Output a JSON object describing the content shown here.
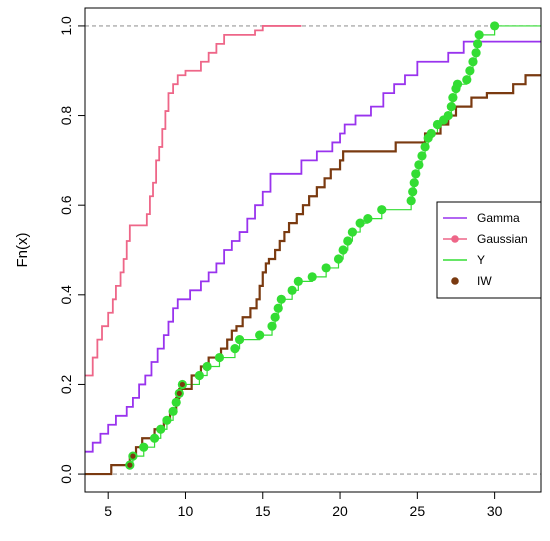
{
  "chart_data": {
    "type": "line",
    "title": "",
    "xlabel": "",
    "ylabel": "Fn(x)",
    "xlim": [
      3.5,
      33
    ],
    "ylim": [
      -0.04,
      1.04
    ],
    "x_ticks": [
      5,
      10,
      15,
      20,
      25,
      30
    ],
    "y_ticks": [
      0.0,
      0.2,
      0.4,
      0.6,
      0.8,
      1.0
    ],
    "x_tick_labels": [
      "5",
      "10",
      "15",
      "20",
      "25",
      "30"
    ],
    "y_tick_labels": [
      "0.0",
      "0.2",
      "0.4",
      "0.6",
      "0.8",
      "1.0"
    ],
    "reference_lines": [
      0,
      1
    ],
    "legend": {
      "position": "right",
      "items": [
        {
          "label": "Gamma",
          "color": "#9933ee",
          "marker": "line"
        },
        {
          "label": "Gaussian",
          "color": "#ee6688",
          "marker": "line-dot"
        },
        {
          "label": "Y",
          "color": "#33dd33",
          "marker": "line"
        },
        {
          "label": "IW",
          "color": "#7a3a10",
          "marker": "dot"
        }
      ]
    },
    "series": [
      {
        "name": "Gamma",
        "color": "#9933ee",
        "style": "step",
        "points": [
          [
            3.5,
            0.05
          ],
          [
            4,
            0.07
          ],
          [
            4.5,
            0.09
          ],
          [
            5,
            0.11
          ],
          [
            5.5,
            0.13
          ],
          [
            6.2,
            0.15
          ],
          [
            6.6,
            0.17
          ],
          [
            7,
            0.2
          ],
          [
            7.4,
            0.22
          ],
          [
            7.8,
            0.25
          ],
          [
            8.2,
            0.28
          ],
          [
            8.6,
            0.31
          ],
          [
            8.9,
            0.34
          ],
          [
            9.2,
            0.37
          ],
          [
            9.5,
            0.39
          ],
          [
            10.3,
            0.41
          ],
          [
            11,
            0.43
          ],
          [
            11.5,
            0.45
          ],
          [
            12,
            0.47
          ],
          [
            12.5,
            0.5
          ],
          [
            13,
            0.52
          ],
          [
            13.5,
            0.54
          ],
          [
            14,
            0.57
          ],
          [
            14.5,
            0.6
          ],
          [
            15,
            0.63
          ],
          [
            15.5,
            0.67
          ],
          [
            17.5,
            0.7
          ],
          [
            18.5,
            0.72
          ],
          [
            19.5,
            0.74
          ],
          [
            20,
            0.76
          ],
          [
            20.3,
            0.78
          ],
          [
            21,
            0.8
          ],
          [
            22,
            0.82
          ],
          [
            22.8,
            0.85
          ],
          [
            23.5,
            0.87
          ],
          [
            24.2,
            0.89
          ],
          [
            25,
            0.92
          ],
          [
            27,
            0.94
          ],
          [
            28,
            0.965
          ],
          [
            33,
            0.965
          ]
        ]
      },
      {
        "name": "Gaussian",
        "color": "#ee6688",
        "style": "step",
        "points": [
          [
            3.5,
            0.22
          ],
          [
            4,
            0.26
          ],
          [
            4.3,
            0.3
          ],
          [
            4.6,
            0.33
          ],
          [
            5,
            0.36
          ],
          [
            5.3,
            0.39
          ],
          [
            5.5,
            0.42
          ],
          [
            5.8,
            0.45
          ],
          [
            6,
            0.48
          ],
          [
            6.2,
            0.52
          ],
          [
            6.4,
            0.555
          ],
          [
            7.5,
            0.58
          ],
          [
            7.7,
            0.62
          ],
          [
            7.9,
            0.65
          ],
          [
            8.1,
            0.7
          ],
          [
            8.3,
            0.73
          ],
          [
            8.5,
            0.77
          ],
          [
            8.7,
            0.81
          ],
          [
            8.9,
            0.85
          ],
          [
            9.2,
            0.87
          ],
          [
            9.5,
            0.89
          ],
          [
            10,
            0.9
          ],
          [
            11,
            0.92
          ],
          [
            11.5,
            0.94
          ],
          [
            12,
            0.96
          ],
          [
            12.5,
            0.98
          ],
          [
            14.5,
            0.99
          ],
          [
            15,
            1.0
          ],
          [
            17.5,
            1.0
          ]
        ]
      },
      {
        "name": "Y",
        "color": "#33dd33",
        "style": "step",
        "points": [
          [
            6.4,
            0.02
          ],
          [
            6.6,
            0.04
          ],
          [
            7.3,
            0.06
          ],
          [
            8,
            0.08
          ],
          [
            8.4,
            0.1
          ],
          [
            8.8,
            0.12
          ],
          [
            9.2,
            0.14
          ],
          [
            9.4,
            0.16
          ],
          [
            9.6,
            0.18
          ],
          [
            9.8,
            0.2
          ],
          [
            10.9,
            0.22
          ],
          [
            11.4,
            0.24
          ],
          [
            12.2,
            0.26
          ],
          [
            13.2,
            0.28
          ],
          [
            13.5,
            0.3
          ],
          [
            14.8,
            0.31
          ],
          [
            15.6,
            0.33
          ],
          [
            15.8,
            0.35
          ],
          [
            16,
            0.37
          ],
          [
            16.2,
            0.39
          ],
          [
            16.9,
            0.41
          ],
          [
            17.3,
            0.43
          ],
          [
            18.2,
            0.44
          ],
          [
            19.1,
            0.46
          ],
          [
            19.9,
            0.48
          ],
          [
            20.2,
            0.5
          ],
          [
            20.5,
            0.52
          ],
          [
            20.8,
            0.54
          ],
          [
            21.3,
            0.56
          ],
          [
            21.8,
            0.57
          ],
          [
            22.7,
            0.59
          ],
          [
            24.6,
            0.61
          ],
          [
            24.7,
            0.63
          ],
          [
            24.8,
            0.65
          ],
          [
            24.9,
            0.67
          ],
          [
            25.1,
            0.69
          ],
          [
            25.3,
            0.71
          ],
          [
            25.5,
            0.73
          ],
          [
            25.7,
            0.75
          ],
          [
            25.9,
            0.76
          ],
          [
            26.3,
            0.78
          ],
          [
            26.7,
            0.79
          ],
          [
            27,
            0.8
          ],
          [
            27.2,
            0.82
          ],
          [
            27.3,
            0.84
          ],
          [
            27.5,
            0.86
          ],
          [
            27.6,
            0.87
          ],
          [
            28.2,
            0.88
          ],
          [
            28.4,
            0.9
          ],
          [
            28.6,
            0.92
          ],
          [
            28.8,
            0.94
          ],
          [
            28.9,
            0.96
          ],
          [
            29,
            0.98
          ],
          [
            30,
            1.0
          ],
          [
            33,
            1.0
          ]
        ]
      },
      {
        "name": "IW",
        "color": "#7a3a10",
        "style": "step",
        "points": [
          [
            3.5,
            0.0
          ],
          [
            5,
            0.0
          ],
          [
            5.2,
            0.02
          ],
          [
            6.4,
            0.04
          ],
          [
            6.8,
            0.06
          ],
          [
            7.2,
            0.08
          ],
          [
            8,
            0.1
          ],
          [
            8.6,
            0.12
          ],
          [
            9,
            0.14
          ],
          [
            9.4,
            0.17
          ],
          [
            9.6,
            0.19
          ],
          [
            10.4,
            0.22
          ],
          [
            11,
            0.24
          ],
          [
            11.5,
            0.26
          ],
          [
            12.3,
            0.28
          ],
          [
            12.7,
            0.3
          ],
          [
            13,
            0.32
          ],
          [
            13.3,
            0.33
          ],
          [
            13.7,
            0.35
          ],
          [
            14.2,
            0.37
          ],
          [
            14.6,
            0.39
          ],
          [
            14.8,
            0.42
          ],
          [
            15,
            0.45
          ],
          [
            15.2,
            0.47
          ],
          [
            15.4,
            0.48
          ],
          [
            15.8,
            0.5
          ],
          [
            16.1,
            0.52
          ],
          [
            16.4,
            0.54
          ],
          [
            16.7,
            0.56
          ],
          [
            17.2,
            0.58
          ],
          [
            17.6,
            0.6
          ],
          [
            18,
            0.62
          ],
          [
            18.5,
            0.64
          ],
          [
            19,
            0.66
          ],
          [
            19.4,
            0.68
          ],
          [
            20,
            0.7
          ],
          [
            20.2,
            0.72
          ],
          [
            23.6,
            0.74
          ],
          [
            25.5,
            0.76
          ],
          [
            26.5,
            0.78
          ],
          [
            27,
            0.8
          ],
          [
            27.5,
            0.82
          ],
          [
            28.5,
            0.84
          ],
          [
            29.5,
            0.85
          ],
          [
            31.2,
            0.87
          ],
          [
            32,
            0.89
          ],
          [
            33,
            0.89
          ]
        ]
      },
      {
        "name": "Y-points",
        "color": "#33dd33",
        "style": "points",
        "points": [
          [
            6.4,
            0.02
          ],
          [
            6.6,
            0.04
          ],
          [
            7.3,
            0.06
          ],
          [
            8,
            0.08
          ],
          [
            8.4,
            0.1
          ],
          [
            8.8,
            0.12
          ],
          [
            9.2,
            0.14
          ],
          [
            9.4,
            0.16
          ],
          [
            9.6,
            0.18
          ],
          [
            9.8,
            0.2
          ],
          [
            10.9,
            0.22
          ],
          [
            11.4,
            0.24
          ],
          [
            12.2,
            0.26
          ],
          [
            13.2,
            0.28
          ],
          [
            13.5,
            0.3
          ],
          [
            14.8,
            0.31
          ],
          [
            15.6,
            0.33
          ],
          [
            15.8,
            0.35
          ],
          [
            16,
            0.37
          ],
          [
            16.2,
            0.39
          ],
          [
            16.9,
            0.41
          ],
          [
            17.3,
            0.43
          ],
          [
            18.2,
            0.44
          ],
          [
            19.1,
            0.46
          ],
          [
            19.9,
            0.48
          ],
          [
            20.2,
            0.5
          ],
          [
            20.5,
            0.52
          ],
          [
            20.8,
            0.54
          ],
          [
            21.3,
            0.56
          ],
          [
            21.8,
            0.57
          ],
          [
            22.7,
            0.59
          ],
          [
            24.6,
            0.61
          ],
          [
            24.7,
            0.63
          ],
          [
            24.8,
            0.65
          ],
          [
            24.9,
            0.67
          ],
          [
            25.1,
            0.69
          ],
          [
            25.3,
            0.71
          ],
          [
            25.5,
            0.73
          ],
          [
            25.7,
            0.75
          ],
          [
            25.9,
            0.76
          ],
          [
            26.3,
            0.78
          ],
          [
            26.7,
            0.79
          ],
          [
            27,
            0.8
          ],
          [
            27.2,
            0.82
          ],
          [
            27.3,
            0.84
          ],
          [
            27.5,
            0.86
          ],
          [
            27.6,
            0.87
          ],
          [
            28.2,
            0.88
          ],
          [
            28.4,
            0.9
          ],
          [
            28.6,
            0.92
          ],
          [
            28.8,
            0.94
          ],
          [
            28.9,
            0.96
          ],
          [
            29,
            0.98
          ],
          [
            30,
            1.0
          ]
        ]
      }
    ]
  }
}
